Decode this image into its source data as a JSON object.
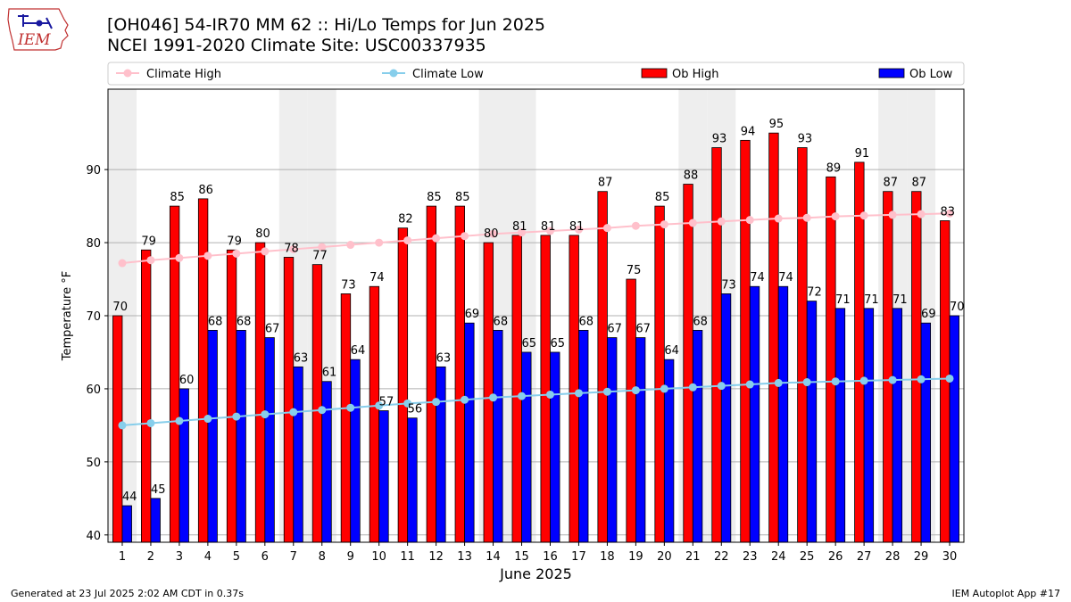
{
  "header": {
    "title_line1": "[OH046] 54-IR70 MM 62 :: Hi/Lo Temps for Jun 2025",
    "title_line2": "NCEI 1991-2020 Climate Site: USC00337935",
    "logo_text": "IEM"
  },
  "footer": {
    "generated": "Generated at 23 Jul 2025 2:02 AM CDT in 0.37s",
    "app": "IEM Autoplot App #17"
  },
  "colors": {
    "ob_high": "#ff0000",
    "ob_low": "#0000ff",
    "climate_high": "#ffc0cb",
    "climate_low": "#87ceeb",
    "weekend_band": "#eeeeee"
  },
  "chart_data": {
    "type": "bar",
    "title": "[OH046] 54-IR70 MM 62 :: Hi/Lo Temps for Jun 2025",
    "xlabel": "June 2025",
    "ylabel": "Temperature °F",
    "ylim": [
      39,
      101
    ],
    "yticks": [
      40,
      50,
      60,
      70,
      80,
      90
    ],
    "grid": true,
    "legend_position": "top",
    "categories": [
      "1",
      "2",
      "3",
      "4",
      "5",
      "6",
      "7",
      "8",
      "9",
      "10",
      "11",
      "12",
      "13",
      "14",
      "15",
      "16",
      "17",
      "18",
      "19",
      "20",
      "21",
      "22",
      "23",
      "24",
      "25",
      "26",
      "27",
      "28",
      "29",
      "30"
    ],
    "weekend_days": [
      1,
      7,
      8,
      14,
      15,
      21,
      22,
      28,
      29
    ],
    "legend": [
      {
        "label": "Climate High",
        "kind": "line",
        "series": "climate_high"
      },
      {
        "label": "Climate Low",
        "kind": "line",
        "series": "climate_low"
      },
      {
        "label": "Ob High",
        "kind": "bar",
        "series": "ob_high"
      },
      {
        "label": "Ob Low",
        "kind": "bar",
        "series": "ob_low"
      }
    ],
    "series": [
      {
        "name": "Ob High",
        "key": "ob_high",
        "type": "bar",
        "values": [
          70,
          79,
          85,
          86,
          79,
          80,
          78,
          77,
          73,
          74,
          82,
          85,
          85,
          80,
          81,
          81,
          81,
          87,
          75,
          85,
          88,
          93,
          94,
          95,
          93,
          89,
          91,
          87,
          87,
          83
        ]
      },
      {
        "name": "Ob Low",
        "key": "ob_low",
        "type": "bar",
        "values": [
          44,
          45,
          60,
          68,
          68,
          67,
          63,
          61,
          64,
          57,
          56,
          63,
          69,
          68,
          65,
          65,
          68,
          67,
          67,
          64,
          68,
          73,
          74,
          74,
          72,
          71,
          71,
          71,
          69,
          70
        ]
      },
      {
        "name": "Climate High",
        "key": "climate_high",
        "type": "line",
        "values": [
          77.2,
          77.6,
          77.9,
          78.2,
          78.5,
          78.8,
          79.1,
          79.4,
          79.7,
          80.0,
          80.3,
          80.6,
          80.9,
          81.2,
          81.4,
          81.6,
          81.8,
          82.0,
          82.3,
          82.5,
          82.7,
          82.9,
          83.1,
          83.3,
          83.4,
          83.6,
          83.7,
          83.8,
          83.9,
          84.0
        ]
      },
      {
        "name": "Climate Low",
        "key": "climate_low",
        "type": "line",
        "values": [
          55.0,
          55.3,
          55.6,
          55.9,
          56.2,
          56.5,
          56.8,
          57.1,
          57.4,
          57.7,
          58.0,
          58.2,
          58.5,
          58.8,
          59.0,
          59.2,
          59.4,
          59.6,
          59.8,
          60.0,
          60.2,
          60.4,
          60.6,
          60.8,
          60.9,
          61.0,
          61.1,
          61.2,
          61.3,
          61.4
        ]
      }
    ]
  }
}
